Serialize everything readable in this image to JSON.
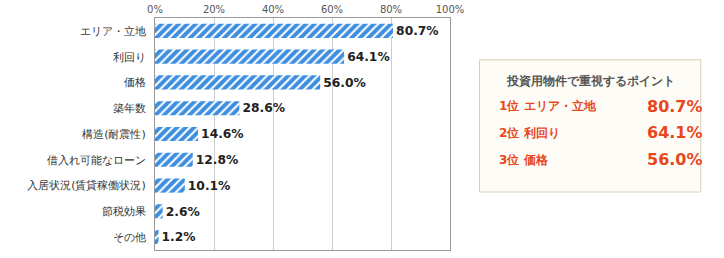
{
  "chart_data": {
    "type": "bar",
    "orientation": "horizontal",
    "categories": [
      "エリア・立地",
      "利回り",
      "価格",
      "築年数",
      "構造(耐震性)",
      "借入れ可能なローン",
      "入居状況(賃貸稼働状況)",
      "節税効果",
      "その他"
    ],
    "values": [
      80.7,
      64.1,
      56.0,
      28.6,
      14.6,
      12.8,
      10.1,
      2.6,
      1.2
    ],
    "value_labels": [
      "80.7%",
      "64.1%",
      "56.0%",
      "28.6%",
      "14.6%",
      "12.8%",
      "10.1%",
      "2.6%",
      "1.2%"
    ],
    "data_labels": true,
    "color": "#3d8ee0",
    "xlim": [
      0,
      100
    ],
    "xticks": [
      {
        "value": 0,
        "label": "0%"
      },
      {
        "value": 20,
        "label": "20%"
      },
      {
        "value": 40,
        "label": "40%"
      },
      {
        "value": 60,
        "label": "60%"
      },
      {
        "value": 80,
        "label": "80%"
      },
      {
        "value": 100,
        "label": "100%"
      }
    ],
    "grid": true,
    "annotations": {
      "title": "投資用物件で重視するポイント",
      "items": [
        {
          "rank": "1位",
          "label": "エリア・立地",
          "value_label": "80.7%"
        },
        {
          "rank": "2位",
          "label": "利回り",
          "value_label": "64.1%"
        },
        {
          "rank": "3位",
          "label": "価格",
          "value_label": "56.0%"
        }
      ]
    }
  }
}
